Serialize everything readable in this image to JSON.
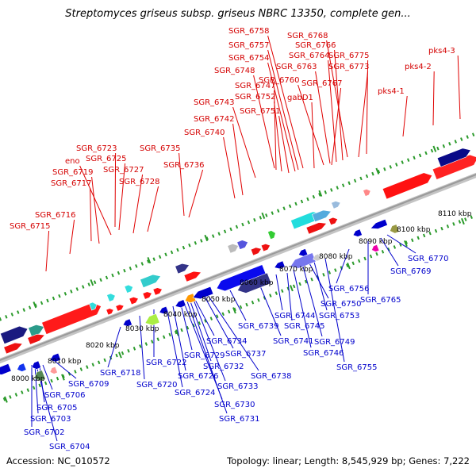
{
  "header": {
    "title": "Streptomyces griseus subsp. griseus NBRC 13350, complete gen..."
  },
  "footer": {
    "accession": "Accession: NC_010572",
    "topology": "Topology: linear; Length: 8,545,929 bp; Genes: 7,222"
  },
  "colors": {
    "forward_label": "#d40000",
    "reverse_label": "#0000cc",
    "track_tick": "#2a9a2a",
    "axis": "#9a9a9a"
  },
  "scale": {
    "ticks": [
      "8000 kbp",
      "8010 kbp",
      "8020 kbp",
      "8030 kbp",
      "8040 kbp",
      "8050 kbp",
      "8060 kbp",
      "8070 kbp",
      "8080 kbp",
      "8090 kbp",
      "8100 kbp",
      "8110 kbp"
    ]
  },
  "forward_genes": [
    "SGR_6715",
    "SGR_6716",
    "SGR_6717",
    "SGR_6719",
    "eno",
    "SGR_6725",
    "SGR_6723",
    "SGR_6727",
    "SGR_6728",
    "SGR_6735",
    "SGR_6736",
    "SGR_6740",
    "SGR_6742",
    "SGR_6743",
    "SGR_6751",
    "SGR_6752",
    "SGR_6747",
    "SGR_6748",
    "SGR_6754",
    "SGR_6757",
    "SGR_6758",
    "SGR_6760",
    "SGR_6763",
    "SGR_6764",
    "SGR_6766",
    "SGR_6768",
    "gabD1",
    "SGR_6767",
    "SGR_6773",
    "SGR_6775",
    "pks4-1",
    "pks4-2",
    "pks4-3"
  ],
  "reverse_genes": [
    "SGR_6702",
    "SGR_6703",
    "SGR_6704",
    "SGR_6705",
    "SGR_6706",
    "SGR_6709",
    "SGR_6718",
    "SGR_6720",
    "SGR_6722",
    "SGR_6724",
    "SGR_6726",
    "SGR_6729",
    "SGR_6730",
    "SGR_6731",
    "SGR_6732",
    "SGR_6733",
    "SGR_6734",
    "SGR_6737",
    "SGR_6738",
    "SGR_6739",
    "SGR_6741",
    "SGR_6744",
    "SGR_6745",
    "SGR_6746",
    "SGR_6749",
    "SGR_6750",
    "SGR_6753",
    "SGR_6755",
    "SGR_6756",
    "SGR_6765",
    "SGR_6769",
    "SGR_6770"
  ]
}
